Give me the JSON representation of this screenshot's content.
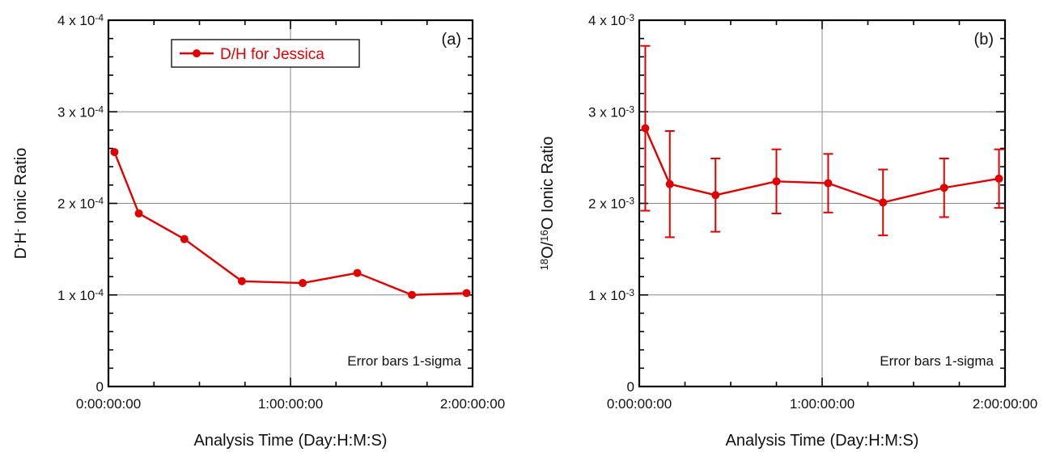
{
  "chart_data": [
    {
      "type": "line",
      "panel_label": "(a)",
      "title": "",
      "xlabel": "Analysis Time (Day:H:M:S)",
      "ylabel": {
        "base": "D",
        "sup1": "-",
        "mid": "H",
        "sup2": "-",
        "rest": " Ionic Ratio"
      },
      "x_unit": "hours",
      "xlim": [
        0,
        2
      ],
      "xticks": [
        {
          "value": 0,
          "label": "0:00:00:00"
        },
        {
          "value": 1,
          "label": "1:00:00:00"
        },
        {
          "value": 2,
          "label": "2:00:00:00"
        }
      ],
      "ylim": [
        0,
        0.0004
      ],
      "yticks": [
        {
          "value": 0,
          "base": "0",
          "exp": ""
        },
        {
          "value": 0.0001,
          "base": "1 x 10",
          "exp": "-4"
        },
        {
          "value": 0.0002,
          "base": "2 x 10",
          "exp": "-4"
        },
        {
          "value": 0.0003,
          "base": "3 x 10",
          "exp": "-4"
        },
        {
          "value": 0.0004,
          "base": "4 x 10",
          "exp": "-4"
        }
      ],
      "grid": true,
      "legend_position": "top-left",
      "note": "Error bars 1-sigma",
      "series": [
        {
          "name": "D/H for Jessica",
          "color": "#e00000",
          "x": [
            0.033,
            0.167,
            0.417,
            0.733,
            1.067,
            1.367,
            1.667,
            1.967
          ],
          "y": [
            0.000256,
            0.000189,
            0.000161,
            0.000115,
            0.000113,
            0.000124,
            0.0001,
            0.000102
          ],
          "err": [
            0,
            0,
            0,
            0,
            0,
            0,
            0,
            0
          ]
        }
      ]
    },
    {
      "type": "line",
      "panel_label": "(b)",
      "title": "",
      "xlabel": "Analysis Time (Day:H:M:S)",
      "ylabel": {
        "sup1": "18",
        "mid": "O/",
        "sup2": "16",
        "rest": "O Ionic Ratio"
      },
      "x_unit": "hours",
      "xlim": [
        0,
        2
      ],
      "xticks": [
        {
          "value": 0,
          "label": "0:00:00:00"
        },
        {
          "value": 1,
          "label": "1:00:00:00"
        },
        {
          "value": 2,
          "label": "2:00:00:00"
        }
      ],
      "ylim": [
        0,
        0.004
      ],
      "yticks": [
        {
          "value": 0,
          "base": "0",
          "exp": ""
        },
        {
          "value": 0.001,
          "base": "1 x 10",
          "exp": "-3"
        },
        {
          "value": 0.002,
          "base": "2 x 10",
          "exp": "-3"
        },
        {
          "value": 0.003,
          "base": "3 x 10",
          "exp": "-3"
        },
        {
          "value": 0.004,
          "base": "4 x 10",
          "exp": "-3"
        }
      ],
      "grid": true,
      "note": "Error bars 1-sigma",
      "series": [
        {
          "name": "",
          "color": "#e00000",
          "x": [
            0.033,
            0.167,
            0.417,
            0.75,
            1.033,
            1.333,
            1.667,
            1.967
          ],
          "y": [
            0.00282,
            0.00221,
            0.00209,
            0.00224,
            0.00222,
            0.00201,
            0.00217,
            0.00227
          ],
          "err": [
            0.0009,
            0.00058,
            0.0004,
            0.00035,
            0.00032,
            0.00036,
            0.00032,
            0.00032
          ]
        }
      ]
    }
  ]
}
